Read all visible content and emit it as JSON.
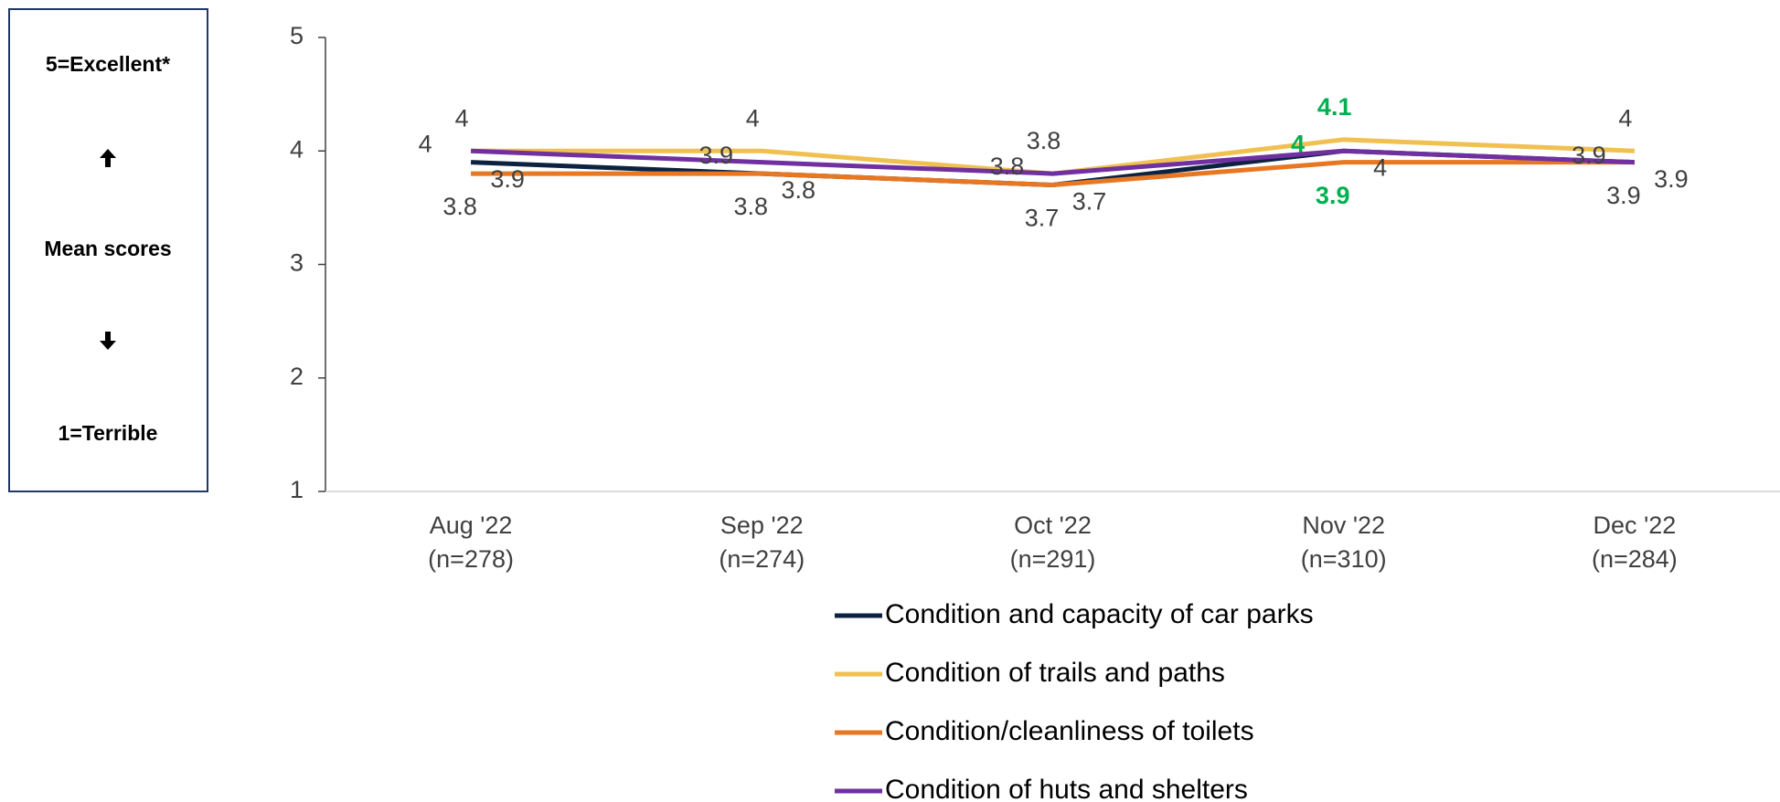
{
  "chart_data": {
    "type": "line",
    "scale_note": {
      "top": "5=Excellent*",
      "middle": "Mean scores",
      "bottom": "1=Terrible"
    },
    "categories": [
      "Aug '22",
      "Sep '22",
      "Oct '22",
      "Nov '22",
      "Dec '22"
    ],
    "sample_sizes": [
      "(n=278)",
      "(n=274)",
      "(n=291)",
      "(n=310)",
      "(n=284)"
    ],
    "ylim": [
      1,
      5
    ],
    "yticks": [
      1,
      2,
      3,
      4,
      5
    ],
    "highlight_color": "#00b050",
    "series": [
      {
        "name": "Condition and capacity of car parks",
        "color": "#0d2240",
        "values": [
          3.9,
          3.8,
          3.7,
          4.0,
          3.9
        ],
        "highlight": [
          false,
          false,
          false,
          false,
          false
        ]
      },
      {
        "name": "Condition of trails and paths",
        "color": "#f0c050",
        "values": [
          4.0,
          4.0,
          3.8,
          4.1,
          4.0
        ],
        "highlight": [
          false,
          false,
          false,
          true,
          false
        ]
      },
      {
        "name": "Condition/cleanliness of toilets",
        "color": "#e87722",
        "values": [
          3.8,
          3.8,
          3.7,
          3.9,
          3.9
        ],
        "highlight": [
          false,
          false,
          false,
          true,
          false
        ]
      },
      {
        "name": "Condition of huts and shelters",
        "color": "#7030a0",
        "values": [
          4.0,
          3.9,
          3.8,
          4.0,
          3.9
        ],
        "highlight": [
          false,
          false,
          false,
          true,
          false
        ]
      }
    ]
  }
}
